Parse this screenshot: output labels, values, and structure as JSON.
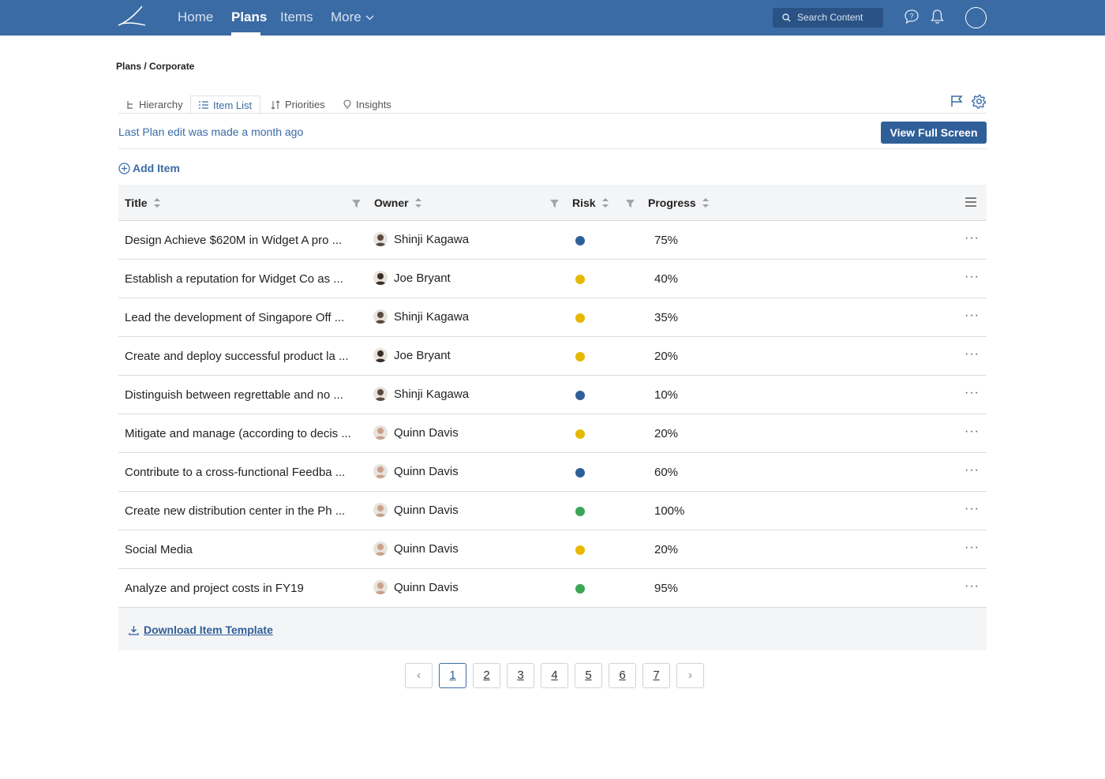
{
  "nav": {
    "home": "Home",
    "plans": "Plans",
    "items": "Items",
    "more": "More",
    "search_placeholder": "Search Content"
  },
  "breadcrumb": "Plans / Corporate",
  "tabs": [
    {
      "label": "Hierarchy",
      "icon": "hierarchy-icon"
    },
    {
      "label": "Item List",
      "icon": "list-icon"
    },
    {
      "label": "Priorities",
      "icon": "priorities-icon"
    },
    {
      "label": "Insights",
      "icon": "lightbulb-icon"
    }
  ],
  "last_edit": "Last Plan edit was made a month ago",
  "view_full_screen": "View Full Screen",
  "add_item": "Add Item",
  "table": {
    "headers": {
      "title": "Title",
      "owner": "Owner",
      "risk": "Risk",
      "progress": "Progress"
    },
    "rows": [
      {
        "title": "Design Achieve $620M in Widget A pro ...",
        "owner": "Shinji Kagawa",
        "risk": "#2f5f98",
        "progress": "75%"
      },
      {
        "title": "Establish a reputation for Widget Co as ...",
        "owner": "Joe Bryant",
        "risk": "#e6b800",
        "progress": "40%"
      },
      {
        "title": "Lead the development of Singapore Off ...",
        "owner": "Shinji Kagawa",
        "risk": "#e6b800",
        "progress": "35%"
      },
      {
        "title": "Create and deploy successful product la ...",
        "owner": "Joe Bryant",
        "risk": "#e6b800",
        "progress": "20%"
      },
      {
        "title": "Distinguish between regrettable and no ...",
        "owner": "Shinji Kagawa",
        "risk": "#2f5f98",
        "progress": "10%"
      },
      {
        "title": "Mitigate and manage (according to decis ...",
        "owner": "Quinn Davis",
        "risk": "#e6b800",
        "progress": "20%"
      },
      {
        "title": "Contribute to a cross-functional Feedba ...",
        "owner": "Quinn Davis",
        "risk": "#2f5f98",
        "progress": "60%"
      },
      {
        "title": "Create new distribution center in the Ph ...",
        "owner": "Quinn Davis",
        "risk": "#3aa655",
        "progress": "100%"
      },
      {
        "title": "Social Media",
        "owner": "Quinn Davis",
        "risk": "#e6b800",
        "progress": "20%"
      },
      {
        "title": "Analyze and project costs in FY19",
        "owner": "Quinn Davis",
        "risk": "#3aa655",
        "progress": "95%"
      }
    ]
  },
  "row_more": "···",
  "download_template": "Download Item Template",
  "pagination": {
    "prev": "‹",
    "next": "›",
    "pages": [
      "1",
      "2",
      "3",
      "4",
      "5",
      "6",
      "7"
    ],
    "current": "1"
  },
  "colors": {
    "brand": "#3a6ba5",
    "risk_blue": "#2f5f98",
    "risk_yellow": "#e6b800",
    "risk_green": "#3aa655"
  }
}
